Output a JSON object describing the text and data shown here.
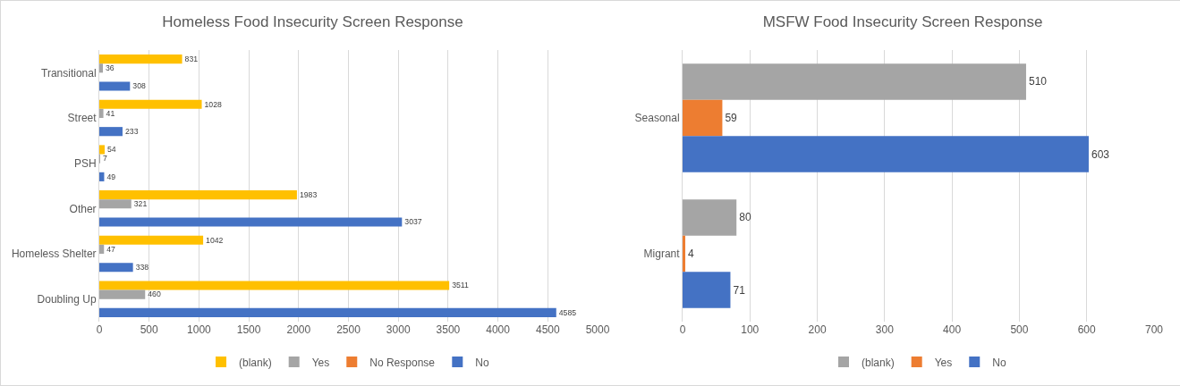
{
  "chart_data": [
    {
      "type": "bar",
      "orientation": "horizontal",
      "title": "Homeless Food Insecurity Screen Response",
      "categories": [
        "Transitional",
        "Street",
        "PSH",
        "Other",
        "Homeless Shelter",
        "Doubling Up"
      ],
      "series": [
        {
          "name": "(blank)",
          "color": "#ffc000",
          "values": [
            831,
            1028,
            54,
            1983,
            1042,
            3511
          ]
        },
        {
          "name": "Yes",
          "color": "#a5a5a5",
          "values": [
            36,
            41,
            7,
            321,
            47,
            460
          ]
        },
        {
          "name": "No Response",
          "color": "#ed7d31",
          "values": [
            null,
            null,
            null,
            null,
            null,
            null
          ]
        },
        {
          "name": "No",
          "color": "#4472c4",
          "values": [
            308,
            233,
            49,
            3037,
            338,
            4585
          ]
        }
      ],
      "xlim": [
        0,
        5000
      ],
      "xticks": [
        0,
        500,
        1000,
        1500,
        2000,
        2500,
        3000,
        3500,
        4000,
        4500,
        5000
      ],
      "grid": "x",
      "legend": "bottom",
      "data_labels": true
    },
    {
      "type": "bar",
      "orientation": "horizontal",
      "title": "MSFW Food Insecurity Screen Response",
      "categories": [
        "Seasonal",
        "Migrant"
      ],
      "series": [
        {
          "name": "(blank)",
          "color": "#a5a5a5",
          "values": [
            510,
            80
          ]
        },
        {
          "name": "Yes",
          "color": "#ed7d31",
          "values": [
            59,
            4
          ]
        },
        {
          "name": "No",
          "color": "#4472c4",
          "values": [
            603,
            71
          ]
        }
      ],
      "xlim": [
        0,
        700
      ],
      "xticks": [
        0,
        100,
        200,
        300,
        400,
        500,
        600,
        700
      ],
      "grid": "x",
      "legend": "bottom",
      "data_labels": true
    }
  ]
}
